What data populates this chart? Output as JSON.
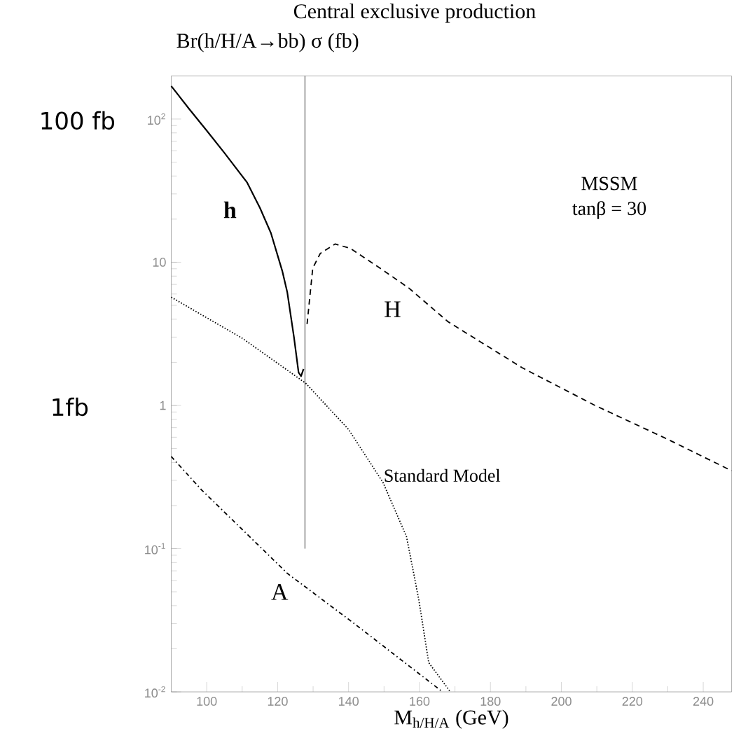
{
  "chart_data": {
    "type": "line",
    "title": "Central exclusive production",
    "ylabel": "Br(h/H/A→bb) σ   (fb)",
    "xlabel": "M$_{h/H/A}$  (GeV)",
    "xlim": [
      90,
      248
    ],
    "xticks": [
      100,
      120,
      140,
      160,
      180,
      200,
      220,
      240
    ],
    "ylim": [
      0.01,
      200
    ],
    "yticks": [
      {
        "value": 0.01,
        "label": "10$^{-2}$"
      },
      {
        "value": 0.1,
        "label": "10$^{-1}$"
      },
      1,
      10,
      {
        "value": 100,
        "label": "10$^{2}$"
      }
    ],
    "log": true,
    "grid": false,
    "marker": "none",
    "series": [
      {
        "name": "h",
        "color": "#000000",
        "line_style": "solid",
        "x": [
          90,
          95,
          100,
          105,
          111.4,
          115,
          118.1,
          121.3,
          122.7,
          124.6,
          125.9,
          126.6,
          127.3
        ],
        "values": [
          170,
          118,
          83,
          58,
          36,
          24,
          16,
          8.7,
          6.2,
          3.0,
          1.7,
          1.6,
          1.8
        ]
      },
      {
        "name": "H",
        "color": "#000000",
        "line_style": "dashed",
        "x": [
          128.3,
          129.9,
          132,
          136.2,
          140.5,
          150,
          157,
          168,
          189,
          209.5,
          230,
          248
        ],
        "values": [
          3.7,
          9.1,
          11.5,
          13.4,
          12.5,
          8.7,
          6.6,
          3.85,
          1.83,
          1.0,
          0.58,
          0.35
        ]
      },
      {
        "name": "Standard Model",
        "color": "#000000",
        "line_style": "dotted",
        "x": [
          90,
          110,
          127.9,
          140,
          149.7,
          156.3,
          157,
          159.8,
          162.6,
          168.7
        ],
        "values": [
          5.7,
          2.95,
          1.43,
          0.68,
          0.29,
          0.122,
          0.1,
          0.044,
          0.016,
          0.01
        ]
      },
      {
        "name": "A",
        "color": "#000000",
        "line_style": "dashdot",
        "x": [
          90,
          98.5,
          122.8,
          141.6,
          166.5
        ],
        "values": [
          0.44,
          0.258,
          0.067,
          0.03,
          0.01
        ]
      },
      {
        "color": "#333333",
        "line_style": "solid",
        "x": [
          127.7,
          127.7
        ],
        "values": [
          0.1,
          200
        ]
      }
    ],
    "annotations": [
      "MSSM",
      "tanβ = 30",
      "100 fb",
      "1fb"
    ]
  }
}
